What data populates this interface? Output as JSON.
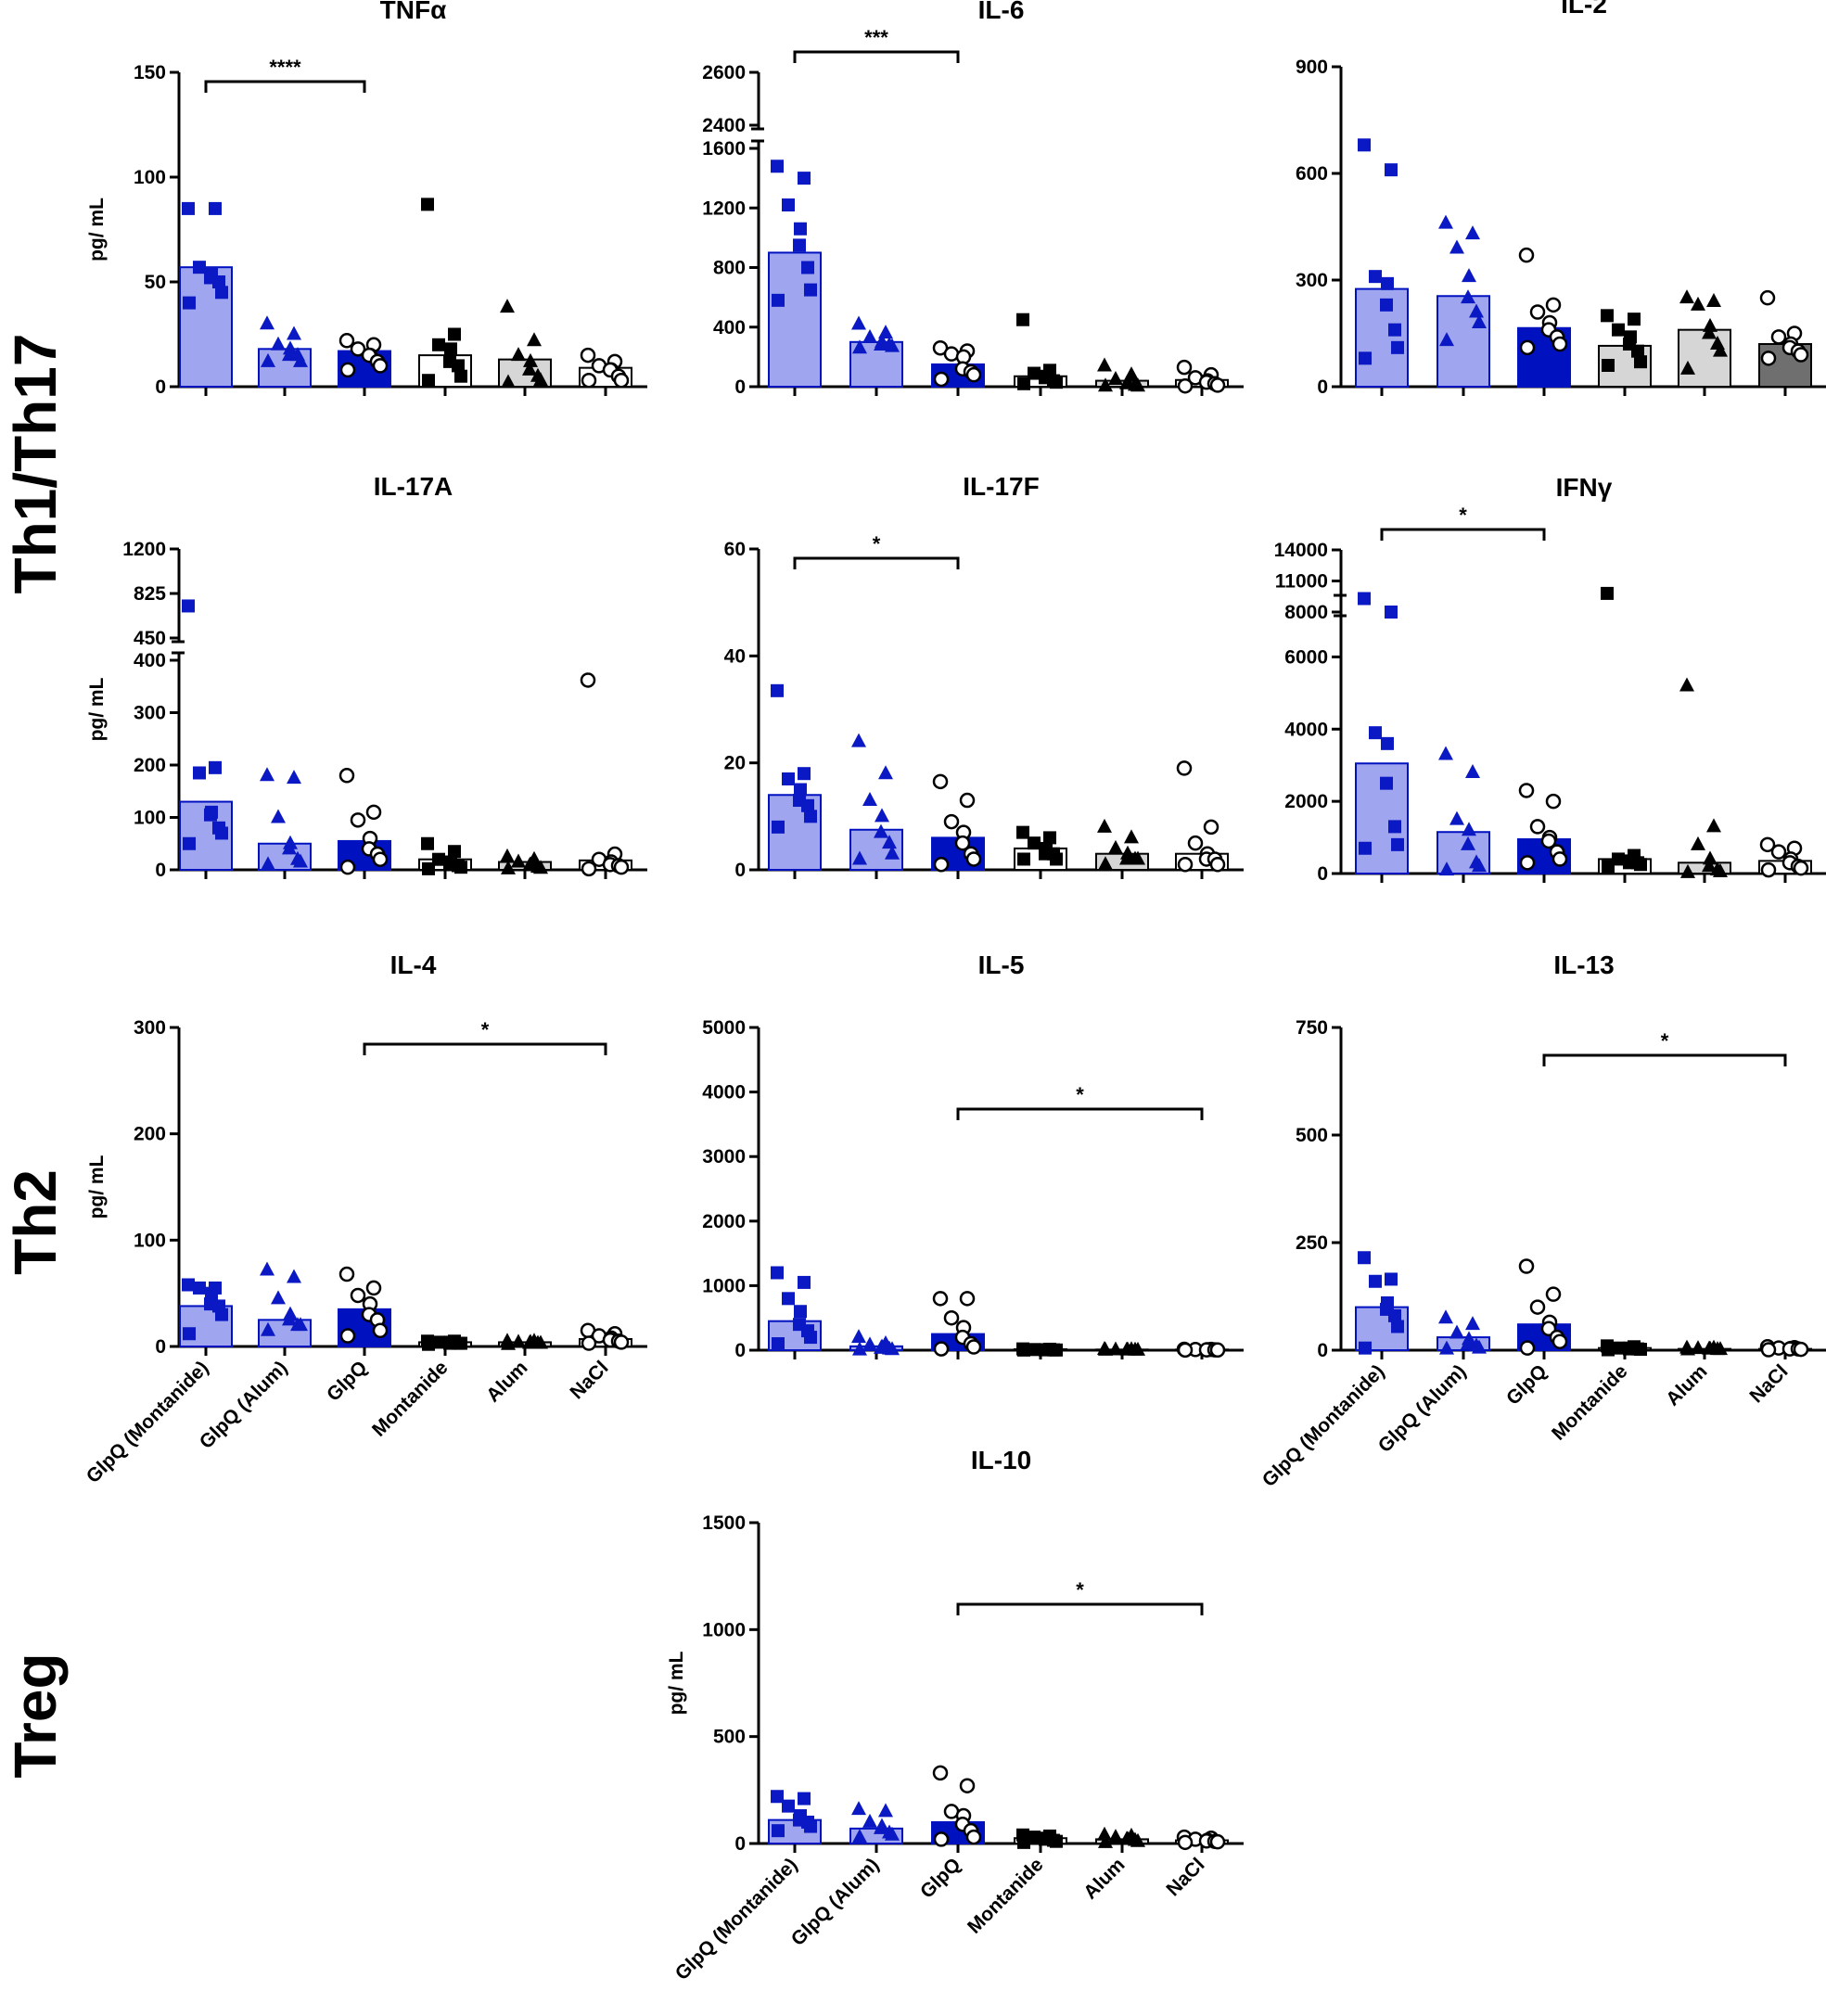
{
  "section_labels": {
    "th1": "Th1/Th17",
    "th2": "Th2",
    "treg": "Treg"
  },
  "colors": {
    "bar_light_blue": "#9fa6ef",
    "bar_dark_blue": "#0012c0",
    "bar_light_gray": "#d6d6d6",
    "bar_dark_gray": "#6f6f6f",
    "point_blue": "#0b19c4",
    "point_black": "#000000",
    "axis": "#000000"
  },
  "chart_data": [
    {
      "id": "tnfa",
      "type": "bar",
      "title": "TNFα",
      "ylabel": "pg/ mL",
      "ylim": [
        0,
        150
      ],
      "ticks": [
        0,
        50,
        100,
        150
      ],
      "tick_labels": [
        "0",
        "50",
        "100",
        "150"
      ],
      "categories": [
        "GlpQ (Montanide)",
        "GlpQ (Alum)",
        "GlpQ",
        "Montanide",
        "Alum",
        "NaCl"
      ],
      "means": [
        57,
        18,
        17,
        15,
        13,
        9
      ],
      "points": [
        [
          85,
          85,
          57,
          54,
          52,
          50,
          45,
          40
        ],
        [
          30,
          25,
          20,
          18,
          15,
          15,
          12,
          12
        ],
        [
          22,
          20,
          18,
          15,
          15,
          12,
          10,
          8
        ],
        [
          87,
          25,
          20,
          18,
          12,
          10,
          5,
          3
        ],
        [
          38,
          22,
          15,
          12,
          8,
          5,
          3,
          2
        ],
        [
          15,
          12,
          10,
          8,
          8,
          5,
          3,
          3
        ]
      ],
      "significance": [
        {
          "from": 0,
          "to": 2,
          "label": "****"
        }
      ]
    },
    {
      "id": "il6",
      "type": "bar",
      "title": "IL-6",
      "ylabel": "",
      "ylim": [
        0,
        1600
      ],
      "ticks": [
        0,
        400,
        800,
        1200,
        1600
      ],
      "tick_labels": [
        "0",
        "400",
        "800",
        "1200",
        "1600"
      ],
      "upper_segment": {
        "range": [
          2400,
          2600
        ],
        "tick_labels": [
          "2400",
          "2600"
        ]
      },
      "categories": [
        "GlpQ (Montanide)",
        "GlpQ (Alum)",
        "GlpQ",
        "Montanide",
        "Alum",
        "NaCl"
      ],
      "means": [
        900,
        300,
        150,
        70,
        40,
        45
      ],
      "points": [
        [
          1480,
          1400,
          1220,
          1060,
          950,
          800,
          650,
          580
        ],
        [
          420,
          360,
          330,
          300,
          280,
          280,
          270,
          260
        ],
        [
          260,
          240,
          220,
          200,
          120,
          100,
          80,
          50
        ],
        [
          450,
          110,
          90,
          70,
          60,
          40,
          30,
          20
        ],
        [
          140,
          80,
          50,
          30,
          20,
          10,
          5,
          5
        ],
        [
          130,
          80,
          60,
          40,
          30,
          20,
          10,
          5
        ]
      ],
      "significance": [
        {
          "from": 0,
          "to": 2,
          "label": "***"
        }
      ]
    },
    {
      "id": "il2",
      "type": "bar",
      "title": "IL-2",
      "ylabel": "",
      "ylim": [
        0,
        900
      ],
      "ticks": [
        0,
        300,
        600,
        900
      ],
      "tick_labels": [
        "0",
        "300",
        "600",
        "900"
      ],
      "categories": [
        "GlpQ (Montanide)",
        "GlpQ (Alum)",
        "GlpQ",
        "Montanide",
        "Alum",
        "NaCl"
      ],
      "means": [
        275,
        255,
        165,
        115,
        160,
        120
      ],
      "points": [
        [
          680,
          610,
          310,
          290,
          230,
          160,
          110,
          80
        ],
        [
          460,
          430,
          390,
          310,
          250,
          210,
          180,
          130
        ],
        [
          370,
          230,
          210,
          180,
          160,
          140,
          120,
          110
        ],
        [
          200,
          190,
          160,
          140,
          120,
          100,
          70,
          60
        ],
        [
          250,
          240,
          230,
          170,
          150,
          120,
          100,
          50
        ],
        [
          250,
          150,
          140,
          120,
          110,
          100,
          90,
          80
        ]
      ],
      "significance": []
    },
    {
      "id": "il17a",
      "type": "bar",
      "title": "IL-17A",
      "ylabel": "pg/ mL",
      "ylim": [
        0,
        400
      ],
      "ticks": [
        0,
        100,
        200,
        300,
        400
      ],
      "tick_labels": [
        "0",
        "100",
        "200",
        "300",
        "400"
      ],
      "upper_segment": {
        "range": [
          450,
          1200
        ],
        "tick_labels": [
          "450",
          "825",
          "1200"
        ]
      },
      "categories": [
        "GlpQ (Montanide)",
        "GlpQ (Alum)",
        "GlpQ",
        "Montanide",
        "Alum",
        "NaCl"
      ],
      "means": [
        130,
        50,
        55,
        20,
        15,
        18
      ],
      "points": [
        [
          720,
          195,
          185,
          110,
          105,
          80,
          70,
          50
        ],
        [
          180,
          175,
          100,
          50,
          40,
          20,
          15,
          10
        ],
        [
          180,
          110,
          95,
          60,
          40,
          30,
          20,
          5
        ],
        [
          50,
          35,
          20,
          15,
          10,
          8,
          5,
          2
        ],
        [
          25,
          20,
          15,
          10,
          8,
          5,
          3,
          2
        ],
        [
          362,
          30,
          20,
          15,
          10,
          8,
          5,
          2
        ]
      ],
      "significance": []
    },
    {
      "id": "il17f",
      "type": "bar",
      "title": "IL-17F",
      "ylabel": "",
      "ylim": [
        0,
        60
      ],
      "ticks": [
        0,
        20,
        40,
        60
      ],
      "tick_labels": [
        "0",
        "20",
        "40",
        "60"
      ],
      "categories": [
        "GlpQ (Montanide)",
        "GlpQ (Alum)",
        "GlpQ",
        "Montanide",
        "Alum",
        "NaCl"
      ],
      "means": [
        14,
        7.5,
        6,
        4,
        3,
        3
      ],
      "points": [
        [
          33.5,
          18,
          17,
          15,
          13,
          12,
          10,
          8
        ],
        [
          24,
          18,
          13,
          10,
          7,
          5,
          3,
          2
        ],
        [
          16.5,
          13,
          9,
          7,
          5,
          3,
          2,
          1
        ],
        [
          7,
          6,
          5,
          4,
          3,
          3,
          2,
          2
        ],
        [
          8,
          6,
          4,
          3,
          2,
          2,
          2,
          1
        ],
        [
          19,
          8,
          5,
          3,
          2,
          2,
          1,
          1
        ]
      ],
      "significance": [
        {
          "from": 0,
          "to": 2,
          "label": "*"
        }
      ]
    },
    {
      "id": "ifng",
      "type": "bar",
      "title": "IFNγ",
      "ylabel": "",
      "ylim": [
        0,
        7500
      ],
      "ticks": [
        0,
        2000,
        4000,
        6000
      ],
      "tick_labels": [
        "0",
        "2000",
        "4000",
        "6000"
      ],
      "upper_segment": {
        "range": [
          8000,
          14000
        ],
        "tick_labels": [
          "8000",
          "11000",
          "14000"
        ]
      },
      "categories": [
        "GlpQ (Montanide)",
        "GlpQ (Alum)",
        "GlpQ",
        "Montanide",
        "Alum",
        "NaCl"
      ],
      "means": [
        3050,
        1150,
        950,
        400,
        300,
        350
      ],
      "points": [
        [
          9300,
          8000,
          3900,
          3600,
          2500,
          1300,
          800,
          700
        ],
        [
          3300,
          2800,
          1500,
          1200,
          800,
          300,
          200,
          100
        ],
        [
          2300,
          2000,
          1300,
          1000,
          900,
          600,
          400,
          300
        ],
        [
          9800,
          500,
          400,
          350,
          300,
          300,
          250,
          200
        ],
        [
          5200,
          1300,
          800,
          400,
          200,
          100,
          50,
          30
        ],
        [
          800,
          700,
          600,
          400,
          300,
          200,
          150,
          100
        ]
      ],
      "significance": [
        {
          "from": 0,
          "to": 2,
          "label": "*"
        }
      ]
    },
    {
      "id": "il4",
      "type": "bar",
      "title": "IL-4",
      "ylabel": "pg/ mL",
      "ylim": [
        0,
        300
      ],
      "ticks": [
        0,
        100,
        200,
        300
      ],
      "tick_labels": [
        "0",
        "100",
        "200",
        "300"
      ],
      "categories": [
        "GlpQ (Montanide)",
        "GlpQ (Alum)",
        "GlpQ",
        "Montanide",
        "Alum",
        "NaCl"
      ],
      "means": [
        38,
        25,
        35,
        4,
        4,
        7
      ],
      "points": [
        [
          58,
          55,
          55,
          50,
          40,
          38,
          30,
          12
        ],
        [
          72,
          65,
          45,
          30,
          25,
          20,
          20,
          15
        ],
        [
          68,
          55,
          48,
          40,
          30,
          25,
          15,
          10
        ],
        [
          5,
          5,
          4,
          4,
          3,
          3,
          3,
          2
        ],
        [
          5,
          5,
          4,
          4,
          3,
          3,
          3,
          2
        ],
        [
          15,
          12,
          10,
          8,
          6,
          5,
          4,
          3
        ]
      ],
      "significance": [
        {
          "from": 2,
          "to": 5,
          "label": "*"
        }
      ]
    },
    {
      "id": "il5",
      "type": "bar",
      "title": "IL-5",
      "ylabel": "",
      "ylim": [
        0,
        5000
      ],
      "ticks": [
        0,
        1000,
        2000,
        3000,
        4000,
        5000
      ],
      "tick_labels": [
        "0",
        "1000",
        "2000",
        "3000",
        "4000",
        "5000"
      ],
      "categories": [
        "GlpQ (Montanide)",
        "GlpQ (Alum)",
        "GlpQ",
        "Montanide",
        "Alum",
        "NaCl"
      ],
      "means": [
        450,
        60,
        250,
        15,
        10,
        10
      ],
      "points": [
        [
          1200,
          1050,
          800,
          600,
          400,
          300,
          200,
          100
        ],
        [
          200,
          100,
          80,
          50,
          30,
          20,
          10,
          5
        ],
        [
          800,
          800,
          500,
          350,
          200,
          100,
          50,
          20
        ],
        [
          20,
          15,
          10,
          8,
          5,
          5,
          3,
          2
        ],
        [
          15,
          10,
          8,
          5,
          5,
          3,
          2,
          1
        ],
        [
          15,
          12,
          10,
          8,
          5,
          5,
          3,
          2
        ]
      ],
      "significance": [
        {
          "from": 2,
          "to": 5,
          "label": "*"
        }
      ]
    },
    {
      "id": "il13",
      "type": "bar",
      "title": "IL-13",
      "ylabel": "",
      "ylim": [
        0,
        750
      ],
      "ticks": [
        0,
        250,
        500,
        750
      ],
      "tick_labels": [
        "0",
        "250",
        "500",
        "750"
      ],
      "categories": [
        "GlpQ (Montanide)",
        "GlpQ (Alum)",
        "GlpQ",
        "Montanide",
        "Alum",
        "NaCl"
      ],
      "means": [
        100,
        30,
        60,
        5,
        3,
        3
      ],
      "points": [
        [
          215,
          165,
          160,
          110,
          95,
          80,
          55,
          5
        ],
        [
          75,
          60,
          40,
          25,
          15,
          10,
          5,
          3
        ],
        [
          195,
          130,
          100,
          65,
          50,
          30,
          20,
          5
        ],
        [
          10,
          8,
          5,
          5,
          3,
          3,
          2,
          1
        ],
        [
          5,
          5,
          4,
          3,
          3,
          2,
          2,
          1
        ],
        [
          8,
          6,
          5,
          4,
          3,
          3,
          2,
          1
        ]
      ],
      "significance": [
        {
          "from": 2,
          "to": 5,
          "label": "*"
        }
      ]
    },
    {
      "id": "il10",
      "type": "bar",
      "title": "IL-10",
      "ylabel": "pg/ mL",
      "ylim": [
        0,
        1500
      ],
      "ticks": [
        0,
        500,
        1000,
        1500
      ],
      "tick_labels": [
        "0",
        "500",
        "1000",
        "1500"
      ],
      "categories": [
        "GlpQ (Montanide)",
        "GlpQ (Alum)",
        "GlpQ",
        "Montanide",
        "Alum",
        "NaCl"
      ],
      "means": [
        110,
        70,
        100,
        25,
        20,
        15
      ],
      "points": [
        [
          220,
          210,
          175,
          130,
          110,
          100,
          80,
          60
        ],
        [
          160,
          150,
          100,
          80,
          70,
          50,
          40,
          30
        ],
        [
          330,
          270,
          150,
          130,
          90,
          60,
          30,
          20
        ],
        [
          40,
          35,
          30,
          25,
          20,
          15,
          10,
          5
        ],
        [
          40,
          35,
          30,
          20,
          20,
          15,
          10,
          5
        ],
        [
          30,
          25,
          20,
          15,
          12,
          10,
          8,
          5
        ]
      ],
      "significance": [
        {
          "from": 2,
          "to": 5,
          "label": "*"
        }
      ]
    }
  ]
}
